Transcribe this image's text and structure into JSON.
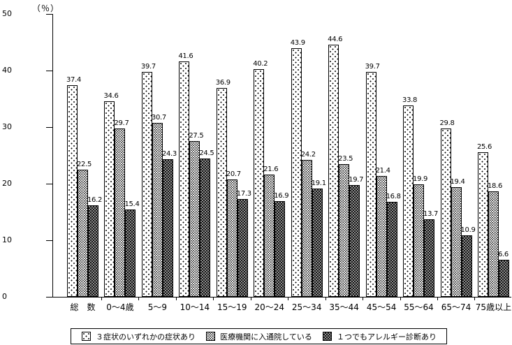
{
  "unit_label": "（％）",
  "chart_data": {
    "type": "bar",
    "title": "",
    "xlabel": "",
    "ylabel": "（％）",
    "ylim": [
      0,
      50
    ],
    "yticks": [
      0,
      10,
      20,
      30,
      40,
      50
    ],
    "grid": false,
    "legend_position": "bottom",
    "categories": [
      "総　数",
      "0〜4歳",
      "5〜9",
      "10〜14",
      "15〜19",
      "20〜24",
      "25〜34",
      "35〜44",
      "45〜54",
      "55〜64",
      "65〜74",
      "75歳以上"
    ],
    "series": [
      {
        "name": "３症状のいずれかの症状あり",
        "pattern": "sparse-dots",
        "values": [
          37.4,
          34.6,
          39.7,
          41.6,
          36.9,
          40.2,
          43.9,
          44.6,
          39.7,
          33.8,
          29.8,
          25.6
        ]
      },
      {
        "name": "医療機関に入通院している",
        "pattern": "dense-dots",
        "values": [
          22.5,
          29.7,
          30.7,
          27.5,
          20.7,
          21.6,
          24.2,
          23.5,
          21.4,
          19.9,
          19.4,
          18.6
        ]
      },
      {
        "name": "１つでもアレルギー診断あり",
        "pattern": "dark-checker",
        "values": [
          16.2,
          15.4,
          24.3,
          24.5,
          17.3,
          16.9,
          19.1,
          19.7,
          16.8,
          13.7,
          10.9,
          6.6
        ]
      }
    ],
    "colors": {
      "foreground": "#000000",
      "background": "#ffffff",
      "checker_fill": "#8e8e8e"
    }
  }
}
